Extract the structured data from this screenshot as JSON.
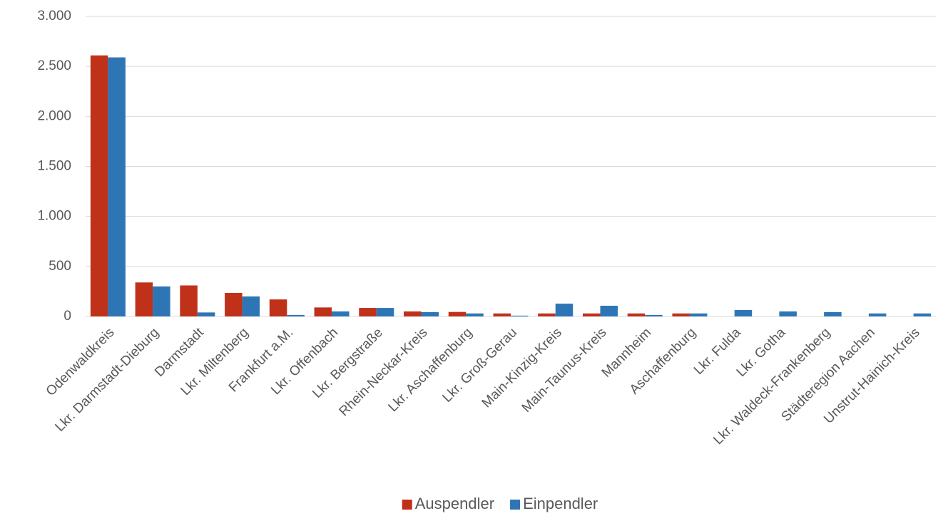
{
  "chart_data": {
    "type": "bar",
    "categories": [
      "Odenwaldkreis",
      "Lkr. Darmstadt-Dieburg",
      "Darmstadt",
      "Lkr. Miltenberg",
      "Frankfurt a.M.",
      "Lkr. Offenbach",
      "Lkr. Bergstraße",
      "Rhein-Neckar-Kreis",
      "Lkr. Aschaffenburg",
      "Lkr. Groß-Gerau",
      "Main-Kinzig-Kreis",
      "Main-Taunus-Kreis",
      "Mannheim",
      "Aschaffenburg",
      "Lkr. Fulda",
      "Lkr. Gotha",
      "Lkr. Waldeck-Frankenberg",
      "Städteregion Aachen",
      "Unstrut-Hainich-Kreis"
    ],
    "series": [
      {
        "name": "Auspendler",
        "color": "#c0311a",
        "values": [
          2610,
          340,
          310,
          235,
          170,
          90,
          85,
          50,
          45,
          30,
          30,
          30,
          30,
          30,
          0,
          0,
          0,
          0,
          0
        ]
      },
      {
        "name": "Einpendler",
        "color": "#2e75b6",
        "values": [
          2590,
          300,
          40,
          200,
          15,
          50,
          85,
          43,
          30,
          8,
          128,
          107,
          15,
          30,
          64,
          50,
          43,
          30,
          30
        ]
      }
    ],
    "ylim": [
      0,
      3000
    ],
    "yticks": [
      0,
      500,
      {
        "value": 1000,
        "label": "1.000"
      },
      {
        "value": 1500,
        "label": "1.500"
      },
      {
        "value": 2000,
        "label": "2.000"
      },
      {
        "value": 2500,
        "label": "2.500"
      },
      {
        "value": 3000,
        "label": "3.000"
      }
    ],
    "grid": true,
    "legend": "bottom"
  }
}
